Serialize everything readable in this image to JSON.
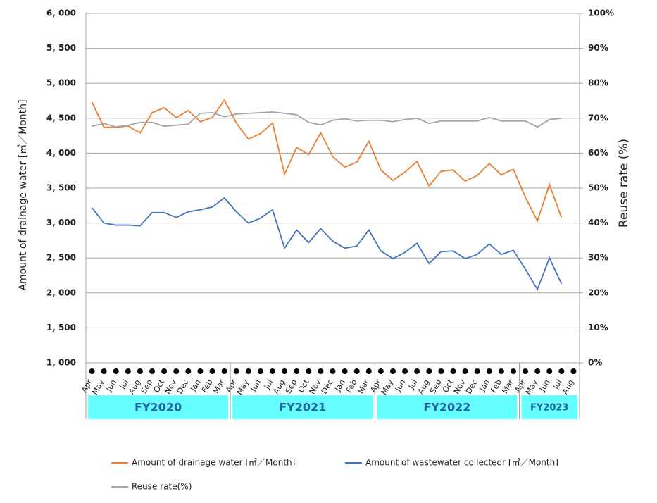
{
  "chart_data": {
    "type": "line",
    "y_label": "Amount of drainage water [㎥／Month]",
    "y2_label": "Reuse rate (%)",
    "categories": [
      "Apr",
      "May",
      "Jun",
      "Jul",
      "Aug",
      "Sep",
      "Oct",
      "Nov",
      "Dec",
      "Jan",
      "Feb",
      "Mar",
      "Apr",
      "May",
      "Jun",
      "Jul",
      "Aug",
      "Sep",
      "Oct",
      "Nov",
      "Dec",
      "Jan",
      "Feb",
      "Mar",
      "Apr",
      "May",
      "Jun",
      "Jul",
      "Aug",
      "Sep",
      "Oct",
      "Nov",
      "Dec",
      "Jan",
      "Feb",
      "Mar",
      "Apr",
      "May",
      "Jun",
      "Jul",
      "Aug"
    ],
    "fiscal_years": [
      "FY2020",
      "FY2021",
      "FY2022",
      "FY2023"
    ],
    "series": [
      {
        "name": "Amount of drainage water [㎥／Month]",
        "color": "#ed7d31",
        "values": [
          4730,
          4370,
          4370,
          4390,
          4290,
          4580,
          4650,
          4510,
          4610,
          4450,
          4510,
          4760,
          4430,
          4200,
          4280,
          4430,
          3700,
          4080,
          3980,
          4290,
          3950,
          3800,
          3870,
          4170,
          3760,
          3610,
          3730,
          3880,
          3530,
          3740,
          3760,
          3600,
          3680,
          3850,
          3690,
          3770,
          3370,
          3030,
          3550,
          3080,
          null
        ]
      },
      {
        "name": "Amount of wastewater collectedr [㎥／Month]",
        "color": "#4472c4",
        "values": [
          3220,
          3000,
          2970,
          2970,
          2960,
          3150,
          3150,
          3080,
          3160,
          3190,
          3230,
          3360,
          3160,
          3000,
          3070,
          3190,
          2640,
          2900,
          2720,
          2920,
          2740,
          2640,
          2670,
          2900,
          2600,
          2490,
          2580,
          2710,
          2420,
          2590,
          2600,
          2490,
          2550,
          2700,
          2550,
          2610,
          2340,
          2050,
          2500,
          2130,
          null
        ]
      },
      {
        "name": "Reuse rate(%)",
        "color": "#a5a5a5",
        "axis": "y2",
        "values": [
          67.7,
          68.5,
          67.5,
          68,
          68.8,
          68.8,
          67.7,
          68,
          68.3,
          71.4,
          71.6,
          70.4,
          71.2,
          71.4,
          71.6,
          71.8,
          71.4,
          71,
          68.8,
          68.1,
          69.4,
          69.8,
          69.2,
          69.4,
          69.4,
          69,
          69.6,
          70,
          68.5,
          69.2,
          69.2,
          69.2,
          69.2,
          70.2,
          69.2,
          69.2,
          69.2,
          67.5,
          69.6,
          70,
          null
        ]
      }
    ],
    "ylim": [
      1000,
      6000
    ],
    "yticks": [
      {
        "value": 1000,
        "label": "1, 000"
      },
      {
        "value": 1500,
        "label": "1, 500"
      },
      {
        "value": 2000,
        "label": "2, 000"
      },
      {
        "value": 2500,
        "label": "2, 500"
      },
      {
        "value": 3000,
        "label": "3, 000"
      },
      {
        "value": 3500,
        "label": "3, 500"
      },
      {
        "value": 4000,
        "label": "4, 000"
      },
      {
        "value": 4500,
        "label": "4, 500"
      },
      {
        "value": 5000,
        "label": "5, 000"
      },
      {
        "value": 5500,
        "label": "5, 500"
      },
      {
        "value": 6000,
        "label": "6, 000"
      }
    ],
    "y2lim": [
      0,
      100
    ],
    "y2ticks": [
      {
        "value": 0,
        "label": "0%"
      },
      {
        "value": 10,
        "label": "10%"
      },
      {
        "value": 20,
        "label": "20%"
      },
      {
        "value": 30,
        "label": "30%"
      },
      {
        "value": 40,
        "label": "40%"
      },
      {
        "value": 50,
        "label": "50%"
      },
      {
        "value": 60,
        "label": "60%"
      },
      {
        "value": 70,
        "label": "70%"
      },
      {
        "value": 80,
        "label": "80%"
      },
      {
        "value": 90,
        "label": "90%"
      },
      {
        "value": 100,
        "label": "100%"
      }
    ],
    "grid": true
  }
}
